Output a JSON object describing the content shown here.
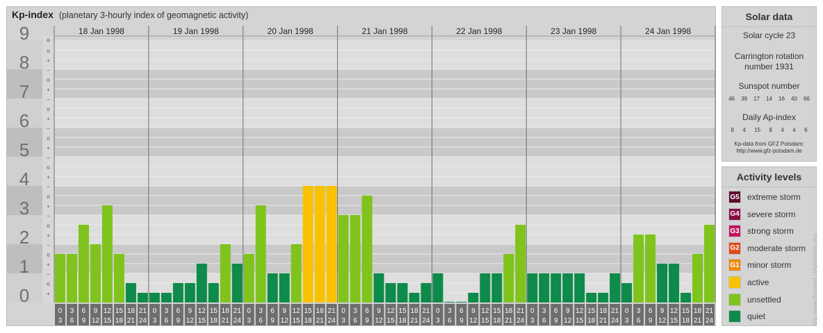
{
  "header": {
    "title": "Kp-index",
    "subtitle": "(planetary 3-hourly index of geomagnetic activity)"
  },
  "chart_data": {
    "type": "bar",
    "y_tick_labels": [
      "0",
      "1",
      "2",
      "3",
      "4",
      "5",
      "6",
      "7",
      "8",
      "9"
    ],
    "minor_marks": [
      "+",
      "o",
      "−"
    ],
    "days": [
      "18 Jan 1998",
      "19 Jan 1998",
      "20 Jan 1998",
      "21 Jan 1998",
      "22 Jan 1998",
      "23 Jan 1998",
      "24 Jan 1998"
    ],
    "hour_labels": [
      [
        "0",
        "3"
      ],
      [
        "3",
        "6"
      ],
      [
        "6",
        "9"
      ],
      [
        "9",
        "12"
      ],
      [
        "12",
        "15"
      ],
      [
        "15",
        "18"
      ],
      [
        "18",
        "21"
      ],
      [
        "21",
        "24"
      ]
    ],
    "ylim": [
      0,
      9
    ],
    "values": [
      [
        1.667,
        1.667,
        2.667,
        2.0,
        3.333,
        1.667,
        0.667,
        0.333
      ],
      [
        0.333,
        0.333,
        0.667,
        0.667,
        1.333,
        0.667,
        2.0,
        1.333
      ],
      [
        1.667,
        3.333,
        1.0,
        1.0,
        2.0,
        4.0,
        4.0,
        4.0
      ],
      [
        3.0,
        3.0,
        3.667,
        1.0,
        0.667,
        0.667,
        0.333,
        0.667
      ],
      [
        1.0,
        0.0,
        0.0,
        0.333,
        1.0,
        1.0,
        1.667,
        2.667
      ],
      [
        1.0,
        1.0,
        1.0,
        1.0,
        1.0,
        0.333,
        0.333,
        1.0
      ],
      [
        0.667,
        2.333,
        2.333,
        1.333,
        1.333,
        0.333,
        1.667,
        2.667
      ]
    ],
    "colors": {
      "quiet": "#0e8a4a",
      "unsettled": "#7fc31c",
      "active": "#f9c200"
    }
  },
  "solar": {
    "title": "Solar data",
    "cycle": "Solar cycle 23",
    "carrington_line1": "Carrington rotation",
    "carrington_line2": "number 1931",
    "sunspot_label": "Sunspot number",
    "sunspot_values": [
      "46",
      "39",
      "17",
      "14",
      "16",
      "40",
      "66"
    ],
    "ap_label": "Daily Ap-index",
    "ap_values": [
      "8",
      "4",
      "15",
      "8",
      "4",
      "4",
      "6"
    ],
    "source_line1": "Kp-data from GFZ Potsdam:",
    "source_line2": "http://www.gfz-potsdam.de"
  },
  "legend": {
    "title": "Activity levels",
    "items": [
      {
        "badge": "G5",
        "label": "extreme storm",
        "color": "#5c0a2e"
      },
      {
        "badge": "G4",
        "label": "severe storm",
        "color": "#8a0c43"
      },
      {
        "badge": "G3",
        "label": "strong storm",
        "color": "#c0155f"
      },
      {
        "badge": "G2",
        "label": "moderate storm",
        "color": "#e04a1a"
      },
      {
        "badge": "G1",
        "label": "minor storm",
        "color": "#ef8a10"
      },
      {
        "badge": "",
        "label": "active",
        "color": "#f9c200"
      },
      {
        "badge": "",
        "label": "unsettled",
        "color": "#7fc31c"
      },
      {
        "badge": "",
        "label": "quiet",
        "color": "#0e8a4a"
      }
    ]
  },
  "watermark": "http://www.theusaef.nl/kp/archive.php"
}
